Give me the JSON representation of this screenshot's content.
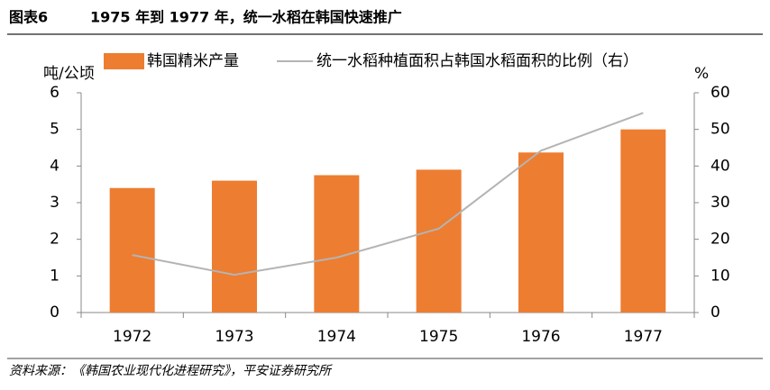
{
  "chart_data": {
    "type": "bar-line",
    "figure_label": "图表6",
    "title": "1975 年到 1977 年，统一水稻在韩国快速推广",
    "y_label": "吨/公顷",
    "y2_label": "%",
    "categories": [
      "1972",
      "1973",
      "1974",
      "1975",
      "1976",
      "1977"
    ],
    "series": [
      {
        "name": "韩国精米产量",
        "type": "bar",
        "color": "#ed7d31",
        "values": [
          3.4,
          3.6,
          3.75,
          3.9,
          4.37,
          5.0
        ]
      },
      {
        "name": "统一水稻种植面积占韩国水稻面积的比例（右）",
        "type": "line",
        "axis": "y2",
        "color": "#b4b4b4",
        "values": [
          15.7,
          10.3,
          15,
          22.9,
          44.2,
          54.5
        ]
      }
    ],
    "ylim": [
      0,
      6
    ],
    "yticks": [
      0,
      1,
      2,
      3,
      4,
      5,
      6
    ],
    "y2lim": [
      0,
      60
    ],
    "y2ticks": [
      0,
      10,
      20,
      30,
      40,
      50,
      60
    ],
    "source": "资料来源：《韩国农业现代化进程研究》，平安证券研究所"
  }
}
